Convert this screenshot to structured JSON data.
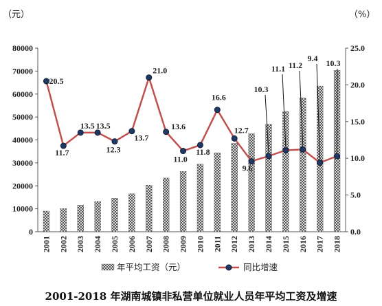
{
  "chart_data": {
    "type": "bar+line",
    "title": "2001-2018 年湖南城镇非私营单位就业人员年平均工资及增速",
    "left_unit": "（元）",
    "right_unit": "（%）",
    "categories": [
      "2001",
      "2002",
      "2003",
      "2004",
      "2005",
      "2006",
      "2007",
      "2008",
      "2009",
      "2010",
      "2011",
      "2012",
      "2013",
      "2014",
      "2015",
      "2016",
      "2017",
      "2018"
    ],
    "y_left": {
      "min": 0,
      "max": 80000,
      "step": 10000,
      "ticks": [
        "0",
        "10000",
        "20000",
        "30000",
        "40000",
        "50000",
        "60000",
        "70000",
        "80000"
      ]
    },
    "y_right": {
      "min": 0,
      "max": 25,
      "step": 5,
      "ticks": [
        "0.0",
        "5.0",
        "10.0",
        "15.0",
        "20.0",
        "25.0"
      ]
    },
    "series": [
      {
        "name": "年平均工资（元）",
        "type": "bar",
        "axis": "left",
        "values": [
          9000,
          10100,
          11600,
          13200,
          14600,
          16600,
          20300,
          23400,
          26300,
          29500,
          34400,
          38500,
          42700,
          46800,
          52400,
          58300,
          63500,
          70300
        ]
      },
      {
        "name": "同比增速",
        "type": "line",
        "axis": "right",
        "color": "#c0504d",
        "marker_color": "#1f3864",
        "values": [
          20.5,
          11.7,
          13.5,
          13.5,
          12.3,
          13.7,
          21.0,
          13.6,
          11.0,
          11.8,
          16.6,
          12.7,
          9.6,
          10.3,
          11.1,
          11.2,
          9.4,
          10.3
        ],
        "labels": [
          "20.5",
          "11.7",
          "13.5",
          "13.5",
          "12.3",
          "13.7",
          "21.0",
          "13.6",
          "11.0",
          "11.8",
          "16.6",
          "12.7",
          "9.6",
          "10.3",
          "11.1",
          "11.2",
          "9.4",
          "10.3"
        ]
      }
    ],
    "legend": {
      "position": "bottom"
    },
    "grid": false
  }
}
